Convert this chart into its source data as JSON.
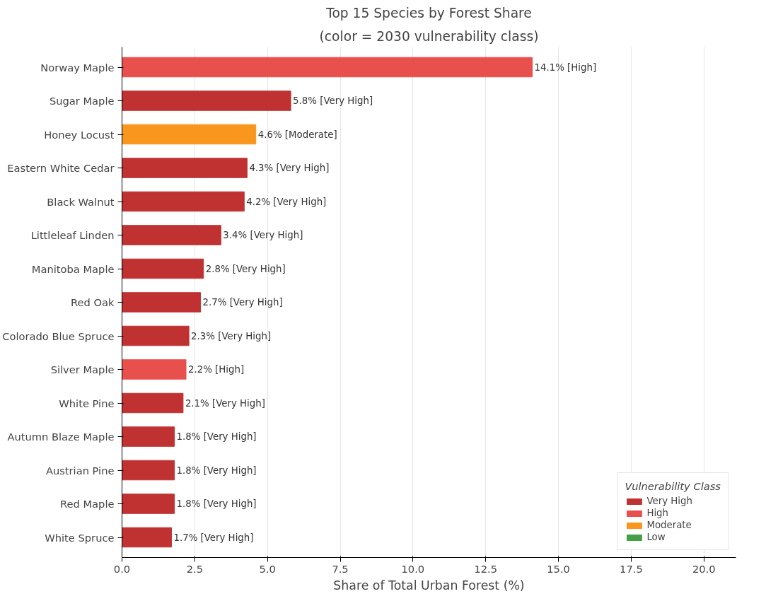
{
  "chart_data": {
    "type": "bar",
    "orientation": "horizontal",
    "title": "Top 15 Species by Forest Share",
    "subtitle": "(color = 2030 vulnerability class)",
    "xlabel": "Share of Total Urban Forest (%)",
    "legend_title": "Vulnerability Class",
    "legend": "bottom right",
    "grid": "x",
    "categories": [
      "Norway Maple",
      "Sugar Maple",
      "Honey Locust",
      "Eastern White Cedar",
      "Black Walnut",
      "Littleleaf Linden",
      "Manitoba Maple",
      "Red Oak",
      "Colorado Blue Spruce",
      "Silver Maple",
      "White Pine",
      "Autumn Blaze Maple",
      "Austrian Pine",
      "Red Maple",
      "White Spruce"
    ],
    "xlim": [
      0,
      21.1
    ],
    "xticks": [
      {
        "value": 0,
        "label": "0.0"
      },
      2.5,
      {
        "value": 5,
        "label": "5.0"
      },
      7.5,
      {
        "value": 10,
        "label": "10.0"
      },
      12.5,
      {
        "value": 15,
        "label": "15.0"
      },
      17.5,
      {
        "value": 20,
        "label": "20.0"
      }
    ],
    "series": [
      {
        "name": "Very High",
        "color": "#c03232",
        "values": [
          null,
          5.8,
          null,
          4.3,
          4.2,
          3.4,
          2.8,
          2.7,
          2.3,
          null,
          2.1,
          1.8,
          1.8,
          1.8,
          1.7
        ],
        "value_labels": [
          null,
          "5.8%  [Very High]",
          null,
          "4.3%  [Very High]",
          "4.2%  [Very High]",
          "3.4%  [Very High]",
          "2.8%  [Very High]",
          "2.7%  [Very High]",
          "2.3%  [Very High]",
          null,
          "2.1%  [Very High]",
          "1.8%  [Very High]",
          "1.8%  [Very High]",
          "1.8%  [Very High]",
          "1.7%  [Very High]"
        ]
      },
      {
        "name": "High",
        "color": "#e8504d",
        "values": [
          14.1,
          null,
          null,
          null,
          null,
          null,
          null,
          null,
          null,
          2.2,
          null,
          null,
          null,
          null,
          null
        ],
        "value_labels": [
          "14.1%  [High]",
          null,
          null,
          null,
          null,
          null,
          null,
          null,
          null,
          "2.2%  [High]",
          null,
          null,
          null,
          null,
          null
        ]
      },
      {
        "name": "Moderate",
        "color": "#f9961e",
        "values": [
          null,
          null,
          4.6,
          null,
          null,
          null,
          null,
          null,
          null,
          null,
          null,
          null,
          null,
          null,
          null
        ],
        "value_labels": [
          null,
          null,
          "4.6%  [Moderate]",
          null,
          null,
          null,
          null,
          null,
          null,
          null,
          null,
          null,
          null,
          null,
          null
        ]
      },
      {
        "name": "Low",
        "color": "#43a047",
        "values": [
          null,
          null,
          null,
          null,
          null,
          null,
          null,
          null,
          null,
          null,
          null,
          null,
          null,
          null,
          null
        ],
        "value_labels": [
          null,
          null,
          null,
          null,
          null,
          null,
          null,
          null,
          null,
          null,
          null,
          null,
          null,
          null,
          null
        ]
      }
    ]
  }
}
